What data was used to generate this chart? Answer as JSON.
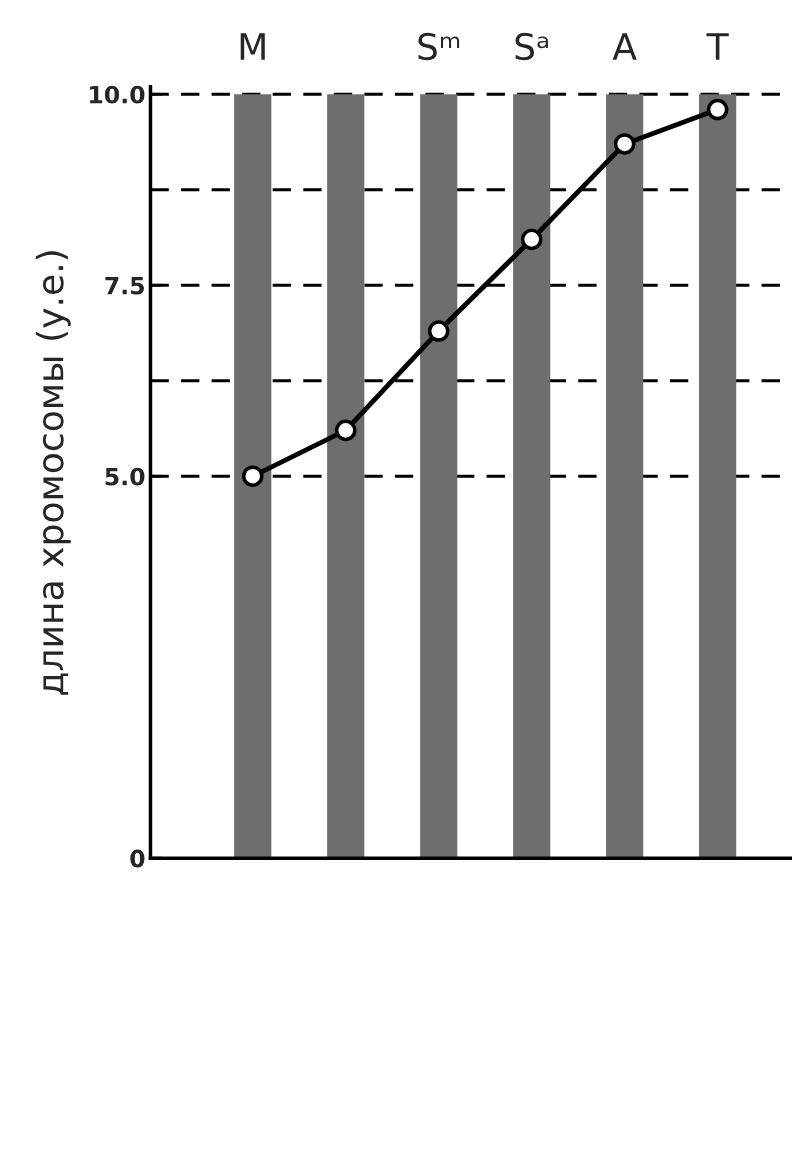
{
  "chart_data": {
    "type": "bar",
    "ylabel": "длина хромосомы (у.е.)",
    "categories": [
      "M",
      null,
      "Sᵐ",
      "Sᵃ",
      "A",
      "T"
    ],
    "series": [
      {
        "color": "#6e6e6e",
        "values": [
          10,
          10,
          10,
          10,
          10,
          10
        ]
      },
      {
        "type": "line",
        "color": "#000000",
        "values": [
          5.0,
          5.6,
          6.9,
          8.1,
          9.35,
          9.8
        ],
        "marker": "circle",
        "line_style": "solid"
      }
    ],
    "ylim": [
      0,
      10.1
    ],
    "yticks": [
      0,
      {
        "value": 5,
        "label": "5.0"
      },
      7.5,
      {
        "value": 10,
        "label": "10.0"
      }
    ],
    "ref_lines": [
      {
        "axis": "y",
        "value": 5,
        "line_style": "dashed",
        "color": "#000000"
      },
      {
        "axis": "y",
        "value": 6.25,
        "line_style": "dashed",
        "color": "#000000"
      },
      {
        "axis": "y",
        "value": 7.5,
        "line_style": "dashed",
        "color": "#000000"
      },
      {
        "axis": "y",
        "value": 8.75,
        "line_style": "dashed",
        "color": "#000000"
      },
      {
        "axis": "y",
        "value": 10,
        "line_style": "dashed",
        "color": "#000000"
      }
    ],
    "grid": false,
    "legend": false
  }
}
